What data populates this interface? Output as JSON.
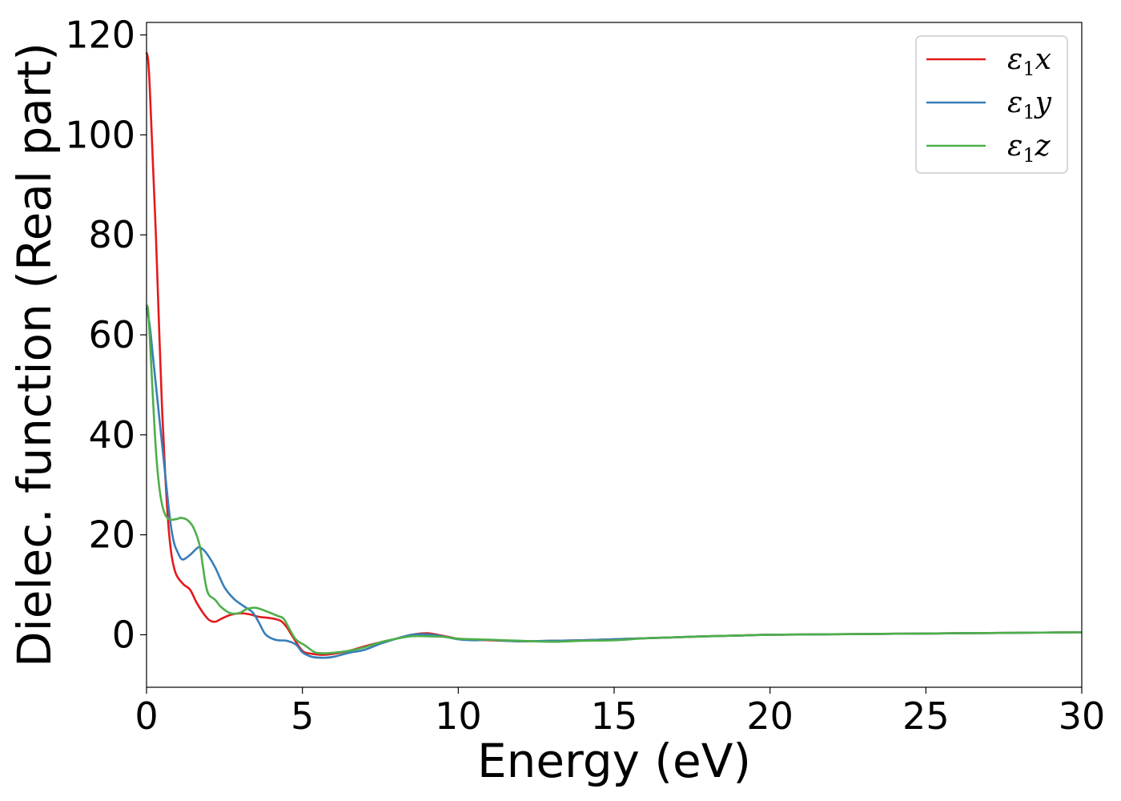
{
  "chart_data": {
    "type": "line",
    "title": "",
    "xlabel": "Energy (eV)",
    "ylabel": "Dielec. function (Real part)",
    "xlim": [
      0,
      30
    ],
    "ylim": [
      -10.5,
      122.5
    ],
    "xticks": [
      0,
      5,
      10,
      15,
      20,
      25,
      30
    ],
    "yticks": [
      0,
      20,
      40,
      60,
      80,
      100,
      120
    ],
    "grid": false,
    "legend_position": "top-right",
    "series": [
      {
        "name": "ε₁x",
        "legend_base": "ε",
        "legend_sub": "1",
        "legend_axis": "x",
        "color": "#e41a1c",
        "points": [
          [
            0,
            116.5
          ],
          [
            0.05,
            115
          ],
          [
            0.1,
            110
          ],
          [
            0.2,
            95
          ],
          [
            0.3,
            80
          ],
          [
            0.4,
            62
          ],
          [
            0.5,
            45
          ],
          [
            0.6,
            32
          ],
          [
            0.7,
            22
          ],
          [
            0.8,
            16
          ],
          [
            0.9,
            13
          ],
          [
            1.0,
            11.5
          ],
          [
            1.2,
            10
          ],
          [
            1.4,
            9
          ],
          [
            1.6,
            6.5
          ],
          [
            1.8,
            4.5
          ],
          [
            2.0,
            3
          ],
          [
            2.2,
            2.6
          ],
          [
            2.4,
            3.2
          ],
          [
            2.7,
            4
          ],
          [
            3.0,
            4.3
          ],
          [
            3.3,
            4.1
          ],
          [
            3.6,
            3.6
          ],
          [
            4.0,
            3.3
          ],
          [
            4.3,
            2.8
          ],
          [
            4.5,
            1.5
          ],
          [
            4.7,
            -0.5
          ],
          [
            5.0,
            -3.2
          ],
          [
            5.3,
            -3.8
          ],
          [
            5.7,
            -4.0
          ],
          [
            6.0,
            -3.8
          ],
          [
            6.5,
            -3.2
          ],
          [
            7.0,
            -2.3
          ],
          [
            7.5,
            -1.5
          ],
          [
            8.0,
            -0.8
          ],
          [
            8.5,
            0
          ],
          [
            9.0,
            0.3
          ],
          [
            9.5,
            -0.2
          ],
          [
            10.0,
            -0.8
          ],
          [
            10.5,
            -1.0
          ],
          [
            11,
            -1.1
          ],
          [
            12,
            -1.3
          ],
          [
            13,
            -1.2
          ],
          [
            14,
            -1.1
          ],
          [
            15,
            -0.9
          ],
          [
            16,
            -0.7
          ],
          [
            17,
            -0.5
          ],
          [
            18,
            -0.3
          ],
          [
            19,
            -0.15
          ],
          [
            20,
            0
          ],
          [
            22,
            0.1
          ],
          [
            24,
            0.2
          ],
          [
            26,
            0.3
          ],
          [
            28,
            0.4
          ],
          [
            30,
            0.5
          ]
        ]
      },
      {
        "name": "ε₁y",
        "legend_base": "ε",
        "legend_sub": "1",
        "legend_axis": "y",
        "color": "#377eb8",
        "points": [
          [
            0,
            65.5
          ],
          [
            0.1,
            62
          ],
          [
            0.2,
            56
          ],
          [
            0.3,
            50
          ],
          [
            0.4,
            44
          ],
          [
            0.5,
            38
          ],
          [
            0.6,
            32
          ],
          [
            0.7,
            26
          ],
          [
            0.8,
            21
          ],
          [
            0.9,
            18
          ],
          [
            1.0,
            16.5
          ],
          [
            1.1,
            15.3
          ],
          [
            1.2,
            15.1
          ],
          [
            1.4,
            16
          ],
          [
            1.6,
            17.2
          ],
          [
            1.7,
            17.5
          ],
          [
            1.9,
            16.5
          ],
          [
            2.2,
            13.5
          ],
          [
            2.5,
            9.5
          ],
          [
            2.8,
            7.2
          ],
          [
            3.1,
            5.8
          ],
          [
            3.4,
            4.5
          ],
          [
            3.6,
            2.5
          ],
          [
            3.8,
            0.2
          ],
          [
            4.0,
            -0.7
          ],
          [
            4.2,
            -1.1
          ],
          [
            4.5,
            -1.2
          ],
          [
            4.8,
            -2
          ],
          [
            5.0,
            -3.5
          ],
          [
            5.3,
            -4.4
          ],
          [
            5.7,
            -4.6
          ],
          [
            6.0,
            -4.4
          ],
          [
            6.5,
            -3.6
          ],
          [
            7.0,
            -3.0
          ],
          [
            7.5,
            -1.8
          ],
          [
            8.0,
            -0.8
          ],
          [
            8.5,
            0
          ],
          [
            9.0,
            0.1
          ],
          [
            9.5,
            -0.3
          ],
          [
            10.0,
            -0.9
          ],
          [
            10.5,
            -1.1
          ],
          [
            11,
            -1.0
          ],
          [
            11.5,
            -1.2
          ],
          [
            12,
            -1.3
          ],
          [
            13,
            -1.2
          ],
          [
            14,
            -1.1
          ],
          [
            15,
            -0.9
          ],
          [
            16,
            -0.7
          ],
          [
            17,
            -0.5
          ],
          [
            18,
            -0.3
          ],
          [
            19,
            -0.15
          ],
          [
            20,
            0
          ],
          [
            22,
            0.1
          ],
          [
            24,
            0.2
          ],
          [
            26,
            0.3
          ],
          [
            28,
            0.4
          ],
          [
            30,
            0.5
          ]
        ]
      },
      {
        "name": "ε₁z",
        "legend_base": "ε",
        "legend_sub": "1",
        "legend_axis": "z",
        "color": "#4daf4a",
        "points": [
          [
            0,
            66
          ],
          [
            0.05,
            65
          ],
          [
            0.1,
            60
          ],
          [
            0.2,
            48
          ],
          [
            0.3,
            37
          ],
          [
            0.4,
            30
          ],
          [
            0.5,
            26
          ],
          [
            0.6,
            24
          ],
          [
            0.7,
            23.2
          ],
          [
            0.8,
            23
          ],
          [
            1.0,
            23.2
          ],
          [
            1.1,
            23.4
          ],
          [
            1.3,
            23
          ],
          [
            1.5,
            21.5
          ],
          [
            1.7,
            18
          ],
          [
            1.8,
            14
          ],
          [
            1.9,
            10
          ],
          [
            2.0,
            8
          ],
          [
            2.2,
            7
          ],
          [
            2.4,
            5.5
          ],
          [
            2.7,
            4.3
          ],
          [
            3.0,
            4.4
          ],
          [
            3.2,
            5.1
          ],
          [
            3.5,
            5.4
          ],
          [
            3.8,
            4.8
          ],
          [
            4.2,
            3.8
          ],
          [
            4.4,
            3.2
          ],
          [
            4.6,
            1
          ],
          [
            4.8,
            -1
          ],
          [
            5.1,
            -2.2
          ],
          [
            5.4,
            -3.5
          ],
          [
            5.7,
            -3.7
          ],
          [
            6.0,
            -3.6
          ],
          [
            6.5,
            -3.2
          ],
          [
            7.0,
            -2.5
          ],
          [
            7.5,
            -1.5
          ],
          [
            8.0,
            -0.8
          ],
          [
            8.5,
            -0.3
          ],
          [
            9.0,
            -0.3
          ],
          [
            9.5,
            -0.4
          ],
          [
            10,
            -0.8
          ],
          [
            10.5,
            -0.9
          ],
          [
            11,
            -1.0
          ],
          [
            12,
            -1.2
          ],
          [
            13,
            -1.4
          ],
          [
            14,
            -1.2
          ],
          [
            15,
            -1.1
          ],
          [
            16,
            -0.7
          ],
          [
            17,
            -0.5
          ],
          [
            18,
            -0.3
          ],
          [
            19,
            -0.15
          ],
          [
            20,
            0
          ],
          [
            22,
            0.1
          ],
          [
            24,
            0.2
          ],
          [
            26,
            0.3
          ],
          [
            28,
            0.4
          ],
          [
            30,
            0.5
          ]
        ]
      }
    ]
  }
}
